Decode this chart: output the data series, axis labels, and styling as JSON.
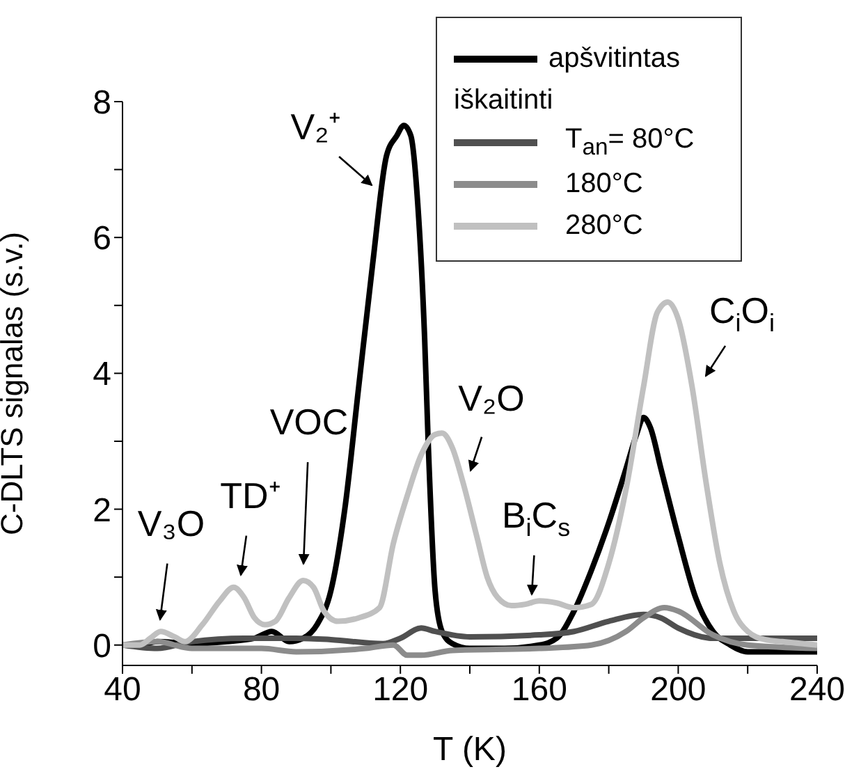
{
  "chart_data": {
    "type": "line",
    "xlabel": "T (K)",
    "ylabel": "C-DLTS signalas (s.v.)",
    "legend_title": "iškaitinti",
    "legend": "top right",
    "xlim": [
      40,
      240
    ],
    "ylim": [
      -0.3,
      8
    ],
    "xticks": [
      40,
      {
        "value": 60,
        "label": null
      },
      80,
      {
        "value": 100,
        "label": null
      },
      120,
      {
        "value": 140,
        "label": null
      },
      160,
      {
        "value": 180,
        "label": null
      },
      200,
      {
        "value": 220,
        "label": null
      },
      240
    ],
    "yticks": [
      0,
      {
        "value": 1,
        "label": null
      },
      2,
      {
        "value": 3,
        "label": null
      },
      4,
      {
        "value": 5,
        "label": null
      },
      6,
      {
        "value": 7,
        "label": null
      },
      8
    ],
    "series": [
      {
        "name": "apšvitintas",
        "color": "#000000",
        "x": [
          40,
          45,
          50,
          60,
          70,
          78,
          83,
          88,
          92,
          96,
          100,
          104,
          108,
          112,
          116,
          119,
          121,
          123,
          125,
          127,
          128,
          130,
          132,
          135,
          140,
          150,
          160,
          165,
          170,
          175,
          180,
          185,
          188,
          190,
          192,
          195,
          200,
          205,
          210,
          215,
          220,
          230,
          240
        ],
        "values": [
          0,
          0,
          0.05,
          0.02,
          0.05,
          0.1,
          0.2,
          0.05,
          0.1,
          0.3,
          0.8,
          2,
          3.8,
          5.6,
          7.2,
          7.5,
          7.65,
          7.5,
          6.5,
          4.5,
          3,
          0.8,
          0.2,
          0.02,
          -0.05,
          -0.05,
          0,
          0.1,
          0.5,
          1.1,
          1.8,
          2.6,
          3.1,
          3.35,
          3.2,
          2.6,
          1.6,
          0.7,
          0.2,
          0,
          -0.1,
          -0.1,
          -0.1
        ]
      },
      {
        "name": "T$_{an}$= 80°C",
        "color": "#505050",
        "x": [
          40,
          50,
          60,
          75,
          90,
          100,
          115,
          120,
          126,
          130,
          140,
          160,
          170,
          180,
          190,
          195,
          200,
          210,
          220,
          240
        ],
        "values": [
          0,
          -0.05,
          0.05,
          0.1,
          0.1,
          0.08,
          0.02,
          0.1,
          0.25,
          0.2,
          0.12,
          0.15,
          0.2,
          0.35,
          0.45,
          0.4,
          0.25,
          0.1,
          0.1,
          0.1
        ]
      },
      {
        "name": "180°C",
        "color": "#8c8c8c",
        "x": [
          40,
          50,
          60,
          80,
          90,
          110,
          118,
          122,
          126,
          135,
          160,
          175,
          185,
          190,
          196,
          200,
          210,
          220,
          240
        ],
        "values": [
          0,
          0.05,
          -0.05,
          -0.05,
          -0.1,
          -0.05,
          0,
          -0.15,
          -0.15,
          -0.08,
          -0.05,
          0,
          0.2,
          0.4,
          0.55,
          0.5,
          0.15,
          0,
          -0.05
        ]
      },
      {
        "name": "280°C",
        "color": "#c0c0c0",
        "x": [
          40,
          45,
          48,
          51,
          55,
          58,
          63,
          68,
          72,
          75,
          78,
          81,
          84,
          88,
          92,
          95,
          98,
          102,
          108,
          114,
          118,
          122,
          126,
          130,
          132,
          135,
          138,
          142,
          145,
          148,
          152,
          156,
          160,
          165,
          170,
          175,
          180,
          185,
          190,
          194,
          197,
          200,
          204,
          208,
          212,
          216,
          220,
          225,
          230,
          240
        ],
        "values": [
          0,
          0,
          0.1,
          0.2,
          0.12,
          0.05,
          0.3,
          0.65,
          0.85,
          0.7,
          0.4,
          0.3,
          0.35,
          0.7,
          0.95,
          0.85,
          0.5,
          0.35,
          0.4,
          0.55,
          1.5,
          2.2,
          2.8,
          3.1,
          3.12,
          2.9,
          2.4,
          1.6,
          1,
          0.7,
          0.58,
          0.6,
          0.65,
          0.62,
          0.55,
          0.6,
          1.2,
          2.3,
          3.8,
          4.9,
          5.05,
          4.8,
          3.8,
          2.4,
          1.2,
          0.5,
          0.2,
          0.08,
          0.05,
          0
        ]
      }
    ],
    "annotations": [
      "V₃O",
      "TD⁺",
      "VOC",
      "V₂⁺",
      "V₂O",
      "B$_{i}$C$_{s}$",
      "C$_{i}$O$_{i}$"
    ]
  }
}
